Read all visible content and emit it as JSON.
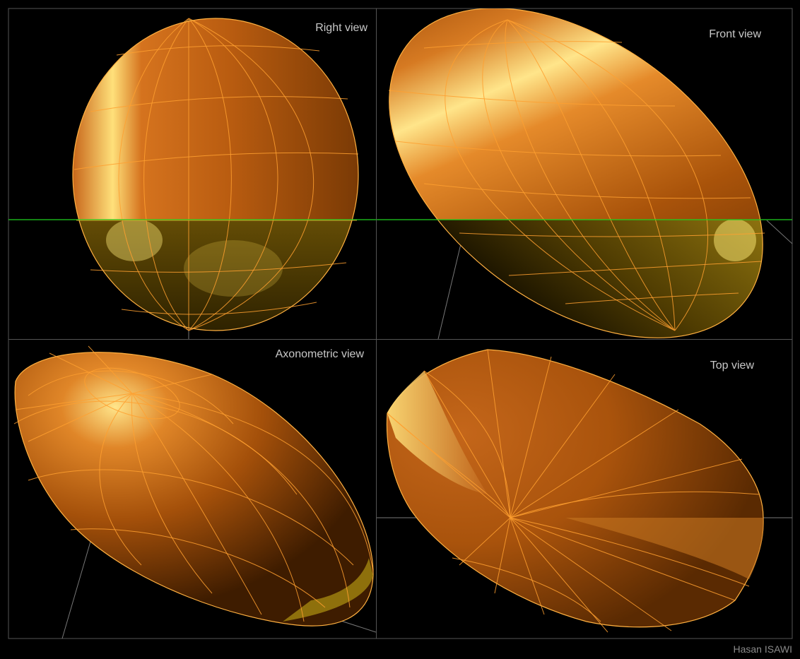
{
  "views": [
    {
      "label": "Right view"
    },
    {
      "label": "Front view"
    },
    {
      "label": "Axonometric view"
    },
    {
      "label": "Top view"
    }
  ],
  "credit": "Hasan ISAWI",
  "colors": {
    "background": "#000000",
    "panel_border": "#555555",
    "ellipsoid_top": "#d5731e",
    "ellipsoid_dark": "#7a3a05",
    "ellipsoid_highlight": "#ffe58a",
    "ellipsoid_lower": "#9c7f0e",
    "mesh_line": "#ffa030",
    "mesh_line_lower": "#ffd24a",
    "horizon_line": "#1fd11f",
    "axis_line": "#777777"
  },
  "icons": [
    "ellipsoid-wireframe-mesh"
  ]
}
